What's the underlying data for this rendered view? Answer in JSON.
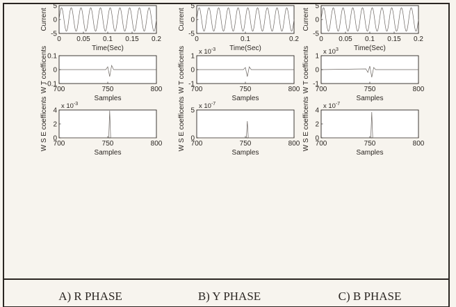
{
  "figure": {
    "captions": [
      "A) R PHASE",
      "B) Y PHASE",
      "C) B PHASE"
    ]
  },
  "labels": {
    "current": "Current",
    "time": "Time(Sec)",
    "samples": "Samples",
    "wt": "W T coefficents",
    "wse": "W S E coefficents"
  },
  "chart_data": [
    {
      "type": "line",
      "id": "r-current",
      "row": 0,
      "col": 0,
      "ylabel": "Current",
      "xlabel": "Time(Sec)",
      "xlim": [
        0,
        0.2
      ],
      "ylim": [
        -5,
        5
      ],
      "xticks": [
        "0",
        "0.05",
        "0.1",
        "0.15",
        "0.2"
      ],
      "yticks": [
        "5",
        "0",
        "-5"
      ],
      "series": [
        {
          "kind": "sine",
          "amplitude": 4.2,
          "frequency_hz": 50
        }
      ]
    },
    {
      "type": "line",
      "id": "y-current",
      "row": 0,
      "col": 1,
      "ylabel": "Current",
      "xlabel": "Time(Sec)",
      "xlim": [
        0,
        0.2
      ],
      "ylim": [
        -5,
        5
      ],
      "xticks": [
        "0",
        "0.1",
        "0.2"
      ],
      "yticks": [
        "5",
        "0",
        "-5"
      ],
      "series": [
        {
          "kind": "sine",
          "amplitude": 4.2,
          "frequency_hz": 50
        }
      ]
    },
    {
      "type": "line",
      "id": "b-current",
      "row": 0,
      "col": 2,
      "ylabel": "Current",
      "xlabel": "Time(Sec)",
      "xlim": [
        0,
        0.2
      ],
      "ylim": [
        -5,
        5
      ],
      "xticks": [
        "0",
        "0.05",
        "0.1",
        "0.15",
        "0.2"
      ],
      "yticks": [
        "5",
        "0",
        "-5"
      ],
      "series": [
        {
          "kind": "sine",
          "amplitude": 4.2,
          "frequency_hz": 50
        }
      ]
    },
    {
      "type": "line",
      "id": "r-wt",
      "row": 1,
      "col": 0,
      "ylabel": "W T coefficents",
      "xlabel": "Samples",
      "exponent": "",
      "xlim": [
        700,
        800
      ],
      "ylim": [
        -0.1,
        0.1
      ],
      "xticks": [
        "700",
        "750",
        "800"
      ],
      "yticks": [
        "0.1",
        "0",
        "-0.1"
      ],
      "series": [
        {
          "kind": "spike",
          "x": [
            700,
            748,
            750,
            752,
            754,
            756,
            800
          ],
          "y": [
            0,
            0,
            0.02,
            -0.05,
            0.03,
            0,
            0
          ]
        }
      ]
    },
    {
      "type": "line",
      "id": "y-wt",
      "row": 1,
      "col": 1,
      "ylabel": "W T coefficents",
      "xlabel": "Samples",
      "exponent": "x 10",
      "exponent_power": "-3",
      "xlim": [
        700,
        800
      ],
      "ylim": [
        -1,
        1
      ],
      "xticks": [
        "700",
        "750",
        "800"
      ],
      "yticks": [
        "1",
        "0",
        "-1"
      ],
      "series": [
        {
          "kind": "spike",
          "x": [
            700,
            748,
            750,
            752,
            754,
            756,
            800
          ],
          "y": [
            0,
            0,
            0.15,
            -0.5,
            0.2,
            0,
            0
          ]
        }
      ]
    },
    {
      "type": "line",
      "id": "b-wt",
      "row": 1,
      "col": 2,
      "ylabel": "W T coefficents",
      "xlabel": "Samples",
      "exponent": "x 10",
      "exponent_power": "3",
      "xlim": [
        700,
        800
      ],
      "ylim": [
        -1,
        1
      ],
      "xticks": [
        "700",
        "750",
        "800"
      ],
      "yticks": [
        "1",
        "0",
        "-1"
      ],
      "series": [
        {
          "kind": "spike",
          "x": [
            700,
            746,
            748,
            750,
            752,
            754,
            756,
            800
          ],
          "y": [
            0,
            0.05,
            -0.2,
            0.25,
            -0.55,
            0.15,
            0,
            0
          ]
        }
      ]
    },
    {
      "type": "line",
      "id": "r-wse",
      "row": 2,
      "col": 0,
      "ylabel": "W S E coefficents",
      "xlabel": "Samples",
      "exponent": "x 10",
      "exponent_power": "-3",
      "xlim": [
        700,
        800
      ],
      "ylim": [
        0,
        4
      ],
      "xticks": [
        "700",
        "750",
        "800"
      ],
      "yticks": [
        "4",
        "2",
        "0"
      ],
      "series": [
        {
          "kind": "spike",
          "x": [
            700,
            751,
            752,
            753,
            800
          ],
          "y": [
            0,
            0,
            3.9,
            0,
            0
          ]
        }
      ]
    },
    {
      "type": "line",
      "id": "y-wse",
      "row": 2,
      "col": 1,
      "ylabel": "W S E coefficents",
      "xlabel": "Samples",
      "exponent": "x 10",
      "exponent_power": "-7",
      "xlim": [
        700,
        800
      ],
      "ylim": [
        0,
        5
      ],
      "xticks": [
        "700",
        "750",
        "800"
      ],
      "yticks": [
        "5",
        "0"
      ],
      "series": [
        {
          "kind": "spike",
          "x": [
            700,
            751,
            752,
            753,
            800
          ],
          "y": [
            0,
            0,
            3.0,
            0,
            0
          ]
        }
      ]
    },
    {
      "type": "line",
      "id": "b-wse",
      "row": 2,
      "col": 2,
      "ylabel": "W S E coefficents",
      "xlabel": "Samples",
      "exponent": "x 10",
      "exponent_power": "-7",
      "xlim": [
        700,
        800
      ],
      "ylim": [
        0,
        4
      ],
      "xticks": [
        "700",
        "750",
        "800"
      ],
      "yticks": [
        "4",
        "2",
        "0"
      ],
      "series": [
        {
          "kind": "spike",
          "x": [
            700,
            751,
            752,
            753,
            800
          ],
          "y": [
            0,
            0,
            3.7,
            0,
            0
          ]
        }
      ]
    }
  ]
}
